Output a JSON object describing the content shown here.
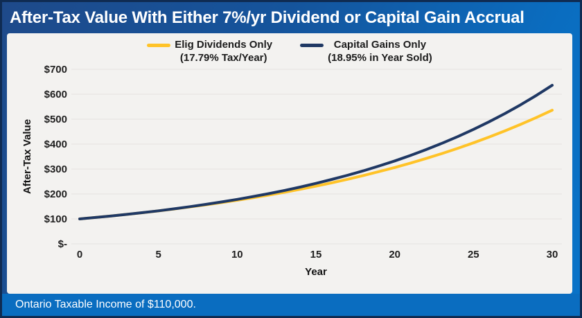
{
  "title_bar": {
    "title": "After-Tax Value With Either 7%/yr Dividend or Capital Gain Accrual"
  },
  "footer": {
    "note": "Ontario Taxable Income of $110,000."
  },
  "colors": {
    "frame_border": "#0F2B52",
    "background_blue_dark": "#1E4A8A",
    "background_blue_bright": "#0973C8",
    "footer_bar": "#0A6DC0",
    "panel_background": "#F3F2F0",
    "gridline": "#E4E3E1",
    "dividends_line": "#FFC328",
    "capital_gains_line": "#1F3864",
    "title_text": "#FFFFFF",
    "axis_text": "#1F1F1F"
  },
  "chart_data": {
    "type": "line",
    "title": "After-Tax Value With Either 7%/yr Dividend or Capital Gain Accrual",
    "xlabel": "Year",
    "ylabel": "After-Tax Value",
    "xlim": [
      0,
      30
    ],
    "ylim": [
      0,
      700
    ],
    "grid": "horizontal",
    "legend_position": "top-center",
    "xticks": [
      0,
      5,
      10,
      15,
      20,
      25,
      30
    ],
    "yticks": [
      0,
      100,
      200,
      300,
      400,
      500,
      600,
      700
    ],
    "ytick_labels": [
      "$-",
      "$100",
      "$200",
      "$300",
      "$400",
      "$500",
      "$600",
      "$700"
    ],
    "x": [
      0,
      1,
      2,
      3,
      4,
      5,
      6,
      7,
      8,
      9,
      10,
      11,
      12,
      13,
      14,
      15,
      16,
      17,
      18,
      19,
      20,
      21,
      22,
      23,
      24,
      25,
      26,
      27,
      28,
      29,
      30
    ],
    "series": [
      {
        "name": "Elig Dividends Only (17.79% Tax/Year)",
        "label_line1": "Elig Dividends Only",
        "label_line2": "(17.79% Tax/Year)",
        "color": "#FFC328",
        "values": [
          100,
          105.8,
          111.8,
          118.3,
          125.1,
          132.3,
          139.9,
          148.0,
          156.5,
          165.5,
          175.0,
          185.1,
          195.7,
          207.0,
          218.9,
          231.5,
          244.8,
          258.9,
          273.8,
          289.6,
          306.2,
          323.9,
          342.5,
          362.2,
          383.1,
          405.1,
          428.4,
          453.1,
          479.2,
          506.7,
          535.9
        ]
      },
      {
        "name": "Capital Gains Only (18.95% in Year Sold)",
        "label_line1": "Capital Gains Only",
        "label_line2": "(18.95% in Year Sold)",
        "color": "#1F3864",
        "values": [
          100,
          105.7,
          111.7,
          118.2,
          125.2,
          132.6,
          140.6,
          149.1,
          158.2,
          168.0,
          178.4,
          189.6,
          201.5,
          214.3,
          227.9,
          242.6,
          258.2,
          275.0,
          292.9,
          312.1,
          332.6,
          354.5,
          378.0,
          403.2,
          430.1,
          458.8,
          489.6,
          522.6,
          557.8,
          595.6,
          635.9
        ]
      }
    ]
  }
}
